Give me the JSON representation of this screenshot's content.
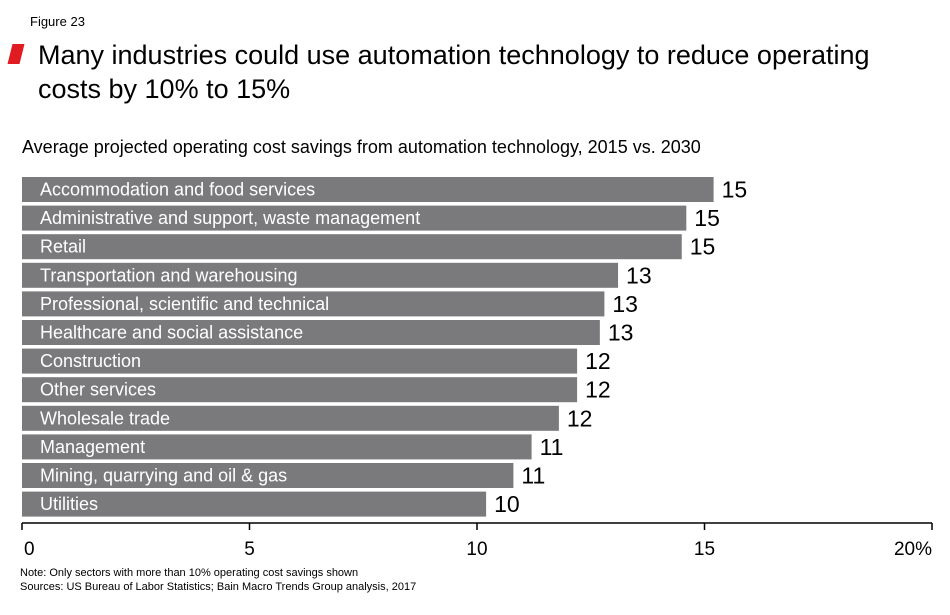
{
  "figure_label": "Figure 23",
  "chart_data": {
    "type": "bar",
    "orientation": "horizontal",
    "title": "Many industries could use automation technology to reduce operating costs by 10% to 15%",
    "subtitle": "Average projected operating cost savings from automation technology, 2015 vs. 2030",
    "categories": [
      "Accommodation and food services",
      "Administrative and support, waste management",
      "Retail",
      "Transportation and warehousing",
      "Professional, scientific and technical",
      "Healthcare and social assistance",
      "Construction",
      "Other services",
      "Wholesale trade",
      "Management",
      "Mining, quarrying and oil & gas",
      "Utilities"
    ],
    "values": [
      15.2,
      14.6,
      14.5,
      13.1,
      12.8,
      12.7,
      12.2,
      12.2,
      11.8,
      11.2,
      10.8,
      10.2
    ],
    "data_labels": [
      "15",
      "15",
      "15",
      "13",
      "13",
      "13",
      "12",
      "12",
      "12",
      "11",
      "11",
      "10"
    ],
    "xlim": [
      0,
      20
    ],
    "x_ticks": [
      "0",
      "5",
      "10",
      "15",
      "20%"
    ],
    "xlabel": "",
    "ylabel": "",
    "grid": false,
    "bar_color": "#7a7a7c",
    "label_color": "#ffffff",
    "axis_color": "#000000"
  },
  "footer": {
    "note": "Note: Only sectors with more than 10% operating cost savings shown",
    "sources": "Sources: US Bureau of Labor Statistics; Bain Macro Trends Group analysis, 2017"
  },
  "accent_color": "#e11b22"
}
